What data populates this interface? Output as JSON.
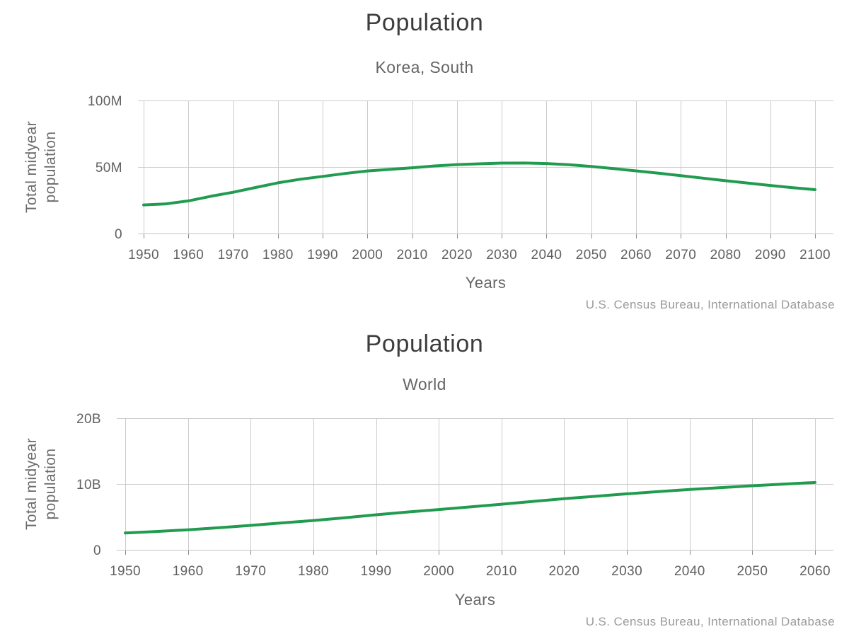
{
  "page": {
    "background": "#ffffff",
    "accent_green": "#219b4f"
  },
  "chart_data": [
    {
      "type": "line",
      "title": "Population",
      "subtitle": "Korea, South",
      "source": "U.S. Census Bureau, International Database",
      "x_axis": {
        "title": "Years",
        "ticks": [
          {
            "value": 1950,
            "label": "1950"
          },
          {
            "value": 1960,
            "label": "1960"
          },
          {
            "value": 1970,
            "label": "1970"
          },
          {
            "value": 1980,
            "label": "1980"
          },
          {
            "value": 1990,
            "label": "1990"
          },
          {
            "value": 2000,
            "label": "2000"
          },
          {
            "value": 2010,
            "label": "2010"
          },
          {
            "value": 2020,
            "label": "2020"
          },
          {
            "value": 2030,
            "label": "2030"
          },
          {
            "value": 2040,
            "label": "2040"
          },
          {
            "value": 2050,
            "label": "2050"
          },
          {
            "value": 2060,
            "label": "2060"
          },
          {
            "value": 2070,
            "label": "2070"
          },
          {
            "value": 2080,
            "label": "2080"
          },
          {
            "value": 2090,
            "label": "2090"
          },
          {
            "value": 2100,
            "label": "2100"
          }
        ]
      },
      "y_axis": {
        "title": "Total midyear population",
        "title_lines": [
          "Total midyear",
          "population"
        ],
        "unit": "millions",
        "max": 100,
        "ticks": [
          {
            "value": 0,
            "label": "0"
          },
          {
            "value": 50,
            "label": "50M"
          },
          {
            "value": 100,
            "label": "100M"
          }
        ]
      },
      "series": [
        {
          "name": "Korea, South",
          "color": "#219b4f",
          "x": [
            1950,
            1955,
            1960,
            1965,
            1970,
            1975,
            1980,
            1985,
            1990,
            1995,
            2000,
            2005,
            2010,
            2015,
            2020,
            2025,
            2030,
            2035,
            2040,
            2045,
            2050,
            2055,
            2060,
            2065,
            2070,
            2075,
            2080,
            2085,
            2090,
            2095,
            2100
          ],
          "y": [
            21.5,
            22.3,
            24.5,
            28.0,
            31.0,
            34.6,
            38.1,
            40.8,
            42.9,
            45.1,
            47.0,
            48.2,
            49.4,
            50.8,
            51.8,
            52.4,
            52.9,
            53.0,
            52.6,
            51.7,
            50.4,
            48.8,
            47.1,
            45.3,
            43.5,
            41.6,
            39.7,
            37.9,
            36.1,
            34.4,
            33.0
          ]
        }
      ]
    },
    {
      "type": "line",
      "title": "Population",
      "subtitle": "World",
      "source": "U.S. Census Bureau, International Database",
      "x_axis": {
        "title": "Years",
        "ticks": [
          {
            "value": 1950,
            "label": "1950"
          },
          {
            "value": 1960,
            "label": "1960"
          },
          {
            "value": 1970,
            "label": "1970"
          },
          {
            "value": 1980,
            "label": "1980"
          },
          {
            "value": 1990,
            "label": "1990"
          },
          {
            "value": 2000,
            "label": "2000"
          },
          {
            "value": 2010,
            "label": "2010"
          },
          {
            "value": 2020,
            "label": "2020"
          },
          {
            "value": 2030,
            "label": "2030"
          },
          {
            "value": 2040,
            "label": "2040"
          },
          {
            "value": 2050,
            "label": "2050"
          },
          {
            "value": 2060,
            "label": "2060"
          }
        ]
      },
      "y_axis": {
        "title": "Total midyear population",
        "title_lines": [
          "Total midyear",
          "population"
        ],
        "unit": "billions",
        "max": 20,
        "ticks": [
          {
            "value": 0,
            "label": "0"
          },
          {
            "value": 10,
            "label": "10B"
          },
          {
            "value": 20,
            "label": "20B"
          }
        ]
      },
      "series": [
        {
          "name": "World",
          "color": "#219b4f",
          "x": [
            1950,
            1955,
            1960,
            1965,
            1970,
            1975,
            1980,
            1985,
            1990,
            1995,
            2000,
            2005,
            2010,
            2015,
            2020,
            2025,
            2030,
            2035,
            2040,
            2045,
            2050,
            2055,
            2060
          ],
          "y": [
            2.56,
            2.78,
            3.04,
            3.35,
            3.71,
            4.09,
            4.45,
            4.87,
            5.32,
            5.74,
            6.12,
            6.52,
            6.93,
            7.35,
            7.76,
            8.13,
            8.5,
            8.84,
            9.16,
            9.45,
            9.73,
            9.99,
            10.23
          ]
        }
      ]
    }
  ],
  "style": {
    "grid_color": "#cccccc",
    "axis_line_color": "#c4c4c4",
    "tick_mark_color": "#8c8c8c",
    "tick_label_color": "#606060",
    "title_color": "#3d3d3d",
    "subtitle_color": "#666666",
    "source_color": "#9b9b9b"
  }
}
